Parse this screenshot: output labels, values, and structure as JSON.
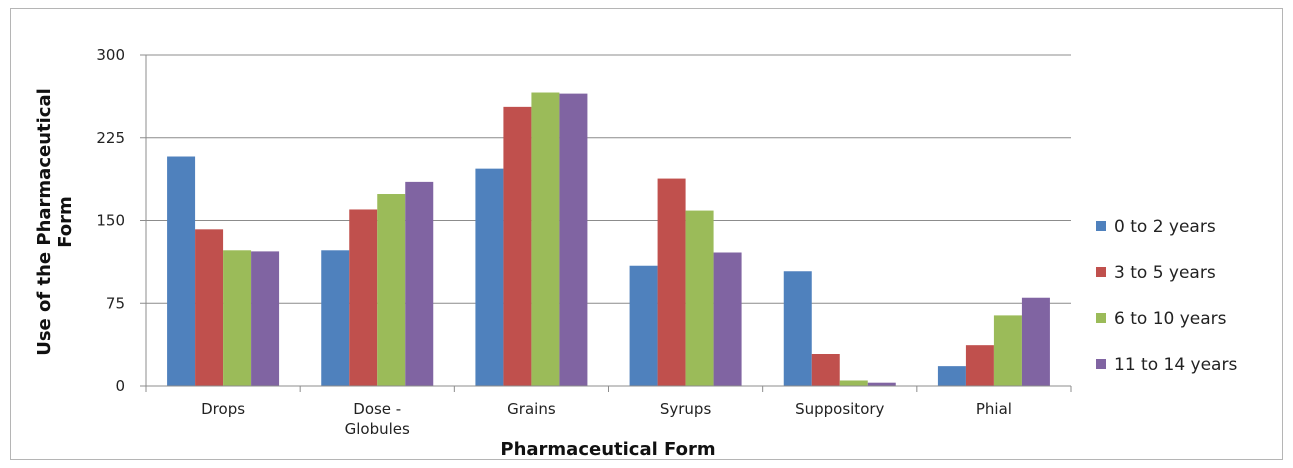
{
  "chart_data": {
    "type": "bar",
    "categories": [
      [
        "Drops"
      ],
      [
        "Dose -",
        "Globules"
      ],
      [
        "Grains"
      ],
      [
        "Syrups"
      ],
      [
        "Suppository"
      ],
      [
        "Phial"
      ]
    ],
    "series": [
      {
        "name": "0 to 2 years",
        "color": "#4f81bd",
        "values": [
          208,
          123,
          197,
          109,
          104,
          18
        ]
      },
      {
        "name": "3 to 5 years",
        "color": "#c0504d",
        "values": [
          142,
          160,
          253,
          188,
          29,
          37
        ]
      },
      {
        "name": "6 to 10 years",
        "color": "#9bbb59",
        "values": [
          123,
          174,
          266,
          159,
          5,
          64
        ]
      },
      {
        "name": "11 to 14 years",
        "color": "#8064a2",
        "values": [
          122,
          185,
          265,
          121,
          3,
          80
        ]
      }
    ],
    "yticks": [
      0,
      75,
      150,
      225,
      300
    ],
    "ylim": [
      0,
      300
    ],
    "xlabel": "Pharmaceutical Form",
    "ylabel": [
      "Use of the Pharmaceutical",
      "Form"
    ],
    "grid": true,
    "legend": "right"
  }
}
